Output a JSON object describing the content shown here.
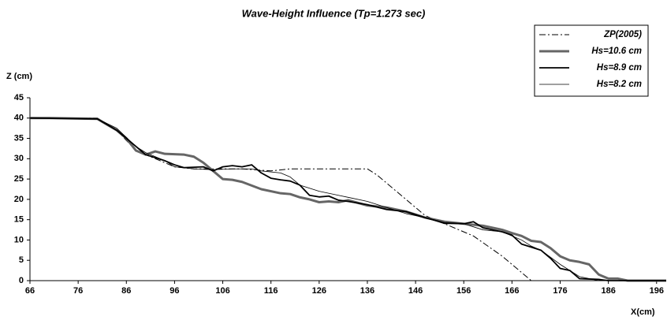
{
  "chart_data": {
    "type": "line",
    "title": "Wave-Height Influence (Tp=1.273 sec)",
    "x_label": "X(cm)",
    "y_label": "Z (cm)",
    "xlim": [
      66,
      198
    ],
    "ylim": [
      0,
      45
    ],
    "xticks": [
      66,
      76,
      86,
      96,
      106,
      116,
      126,
      136,
      146,
      156,
      166,
      176,
      186,
      196
    ],
    "yticks": [
      0,
      5,
      10,
      15,
      20,
      25,
      30,
      35,
      40,
      45
    ],
    "grid": false,
    "legend": "top-right",
    "series": [
      {
        "name": "ZP(2005)",
        "color": "#000000",
        "width": 1,
        "dashed": true,
        "x": [
          66,
          80,
          84,
          88,
          92,
          96,
          100,
          106,
          110,
          116,
          120,
          126,
          136,
          138,
          144,
          148,
          152,
          158,
          164,
          168,
          170,
          198
        ],
        "values": [
          40,
          40,
          37,
          32,
          30,
          28,
          27.5,
          27.5,
          27.5,
          27,
          27.5,
          27.5,
          27.5,
          26,
          20,
          16,
          14,
          11,
          6,
          2,
          0,
          0
        ]
      },
      {
        "name": "Hs=10.6 cm",
        "color": "#666666",
        "width": 3,
        "dashed": false,
        "x": [
          66,
          70,
          80,
          84,
          86,
          88,
          90,
          92,
          94,
          98,
          100,
          102,
          104,
          106,
          108,
          110,
          114,
          118,
          120,
          122,
          124,
          126,
          128,
          130,
          132,
          136,
          140,
          144,
          148,
          152,
          156,
          160,
          164,
          166,
          168,
          170,
          172,
          174,
          176,
          178,
          180,
          182,
          184,
          186,
          188,
          190,
          198
        ],
        "values": [
          40,
          40,
          39.8,
          37,
          35,
          32,
          31,
          31.8,
          31.2,
          31,
          30.5,
          29,
          27,
          25,
          24.8,
          24.3,
          22.5,
          21.5,
          21.3,
          20.5,
          20,
          19.3,
          19.5,
          19.3,
          19.8,
          18.5,
          18,
          17,
          15.5,
          14.5,
          14,
          13.5,
          12.5,
          11.7,
          11,
          9.8,
          9.5,
          8,
          6,
          5,
          4.6,
          4,
          1.5,
          0.5,
          0.5,
          0,
          0
        ]
      },
      {
        "name": "Hs=8.9 cm",
        "color": "#000000",
        "width": 1.8,
        "dashed": false,
        "x": [
          66,
          80,
          84,
          88,
          90,
          94,
          96,
          98,
          102,
          104,
          106,
          108,
          110,
          112,
          114,
          116,
          118,
          120,
          122,
          124,
          126,
          128,
          130,
          132,
          136,
          140,
          144,
          148,
          152,
          156,
          158,
          160,
          164,
          166,
          168,
          172,
          174,
          176,
          178,
          180,
          184,
          186,
          198
        ],
        "values": [
          40,
          39.8,
          37,
          33,
          31,
          29.5,
          28.5,
          27.8,
          28,
          27,
          28,
          28.3,
          28,
          28.5,
          26.5,
          25.2,
          24.8,
          24.5,
          23.5,
          21,
          20.6,
          20.8,
          19.8,
          19.5,
          18.7,
          17.5,
          17,
          15.5,
          14.2,
          14,
          14.5,
          13,
          12,
          11.2,
          9,
          7.5,
          5.5,
          3,
          2.5,
          0.5,
          0.3,
          0,
          0
        ]
      },
      {
        "name": "Hs=8.2 cm",
        "color": "#000000",
        "width": 0.8,
        "dashed": false,
        "x": [
          66,
          80,
          84,
          88,
          90,
          94,
          96,
          100,
          104,
          108,
          112,
          114,
          118,
          120,
          122,
          126,
          130,
          132,
          136,
          140,
          144,
          148,
          152,
          156,
          160,
          164,
          168,
          170,
          172,
          176,
          178,
          180,
          182,
          184,
          198
        ],
        "values": [
          40,
          39.8,
          37.5,
          33,
          31.5,
          29.5,
          28,
          27.5,
          27.3,
          27.5,
          27.5,
          27,
          26.5,
          25.5,
          23.5,
          22,
          21,
          20.5,
          19.5,
          18,
          16.5,
          15.5,
          14,
          14,
          12.5,
          12,
          10,
          8.5,
          7.5,
          4,
          2.5,
          1,
          0.5,
          0,
          0
        ]
      }
    ]
  }
}
